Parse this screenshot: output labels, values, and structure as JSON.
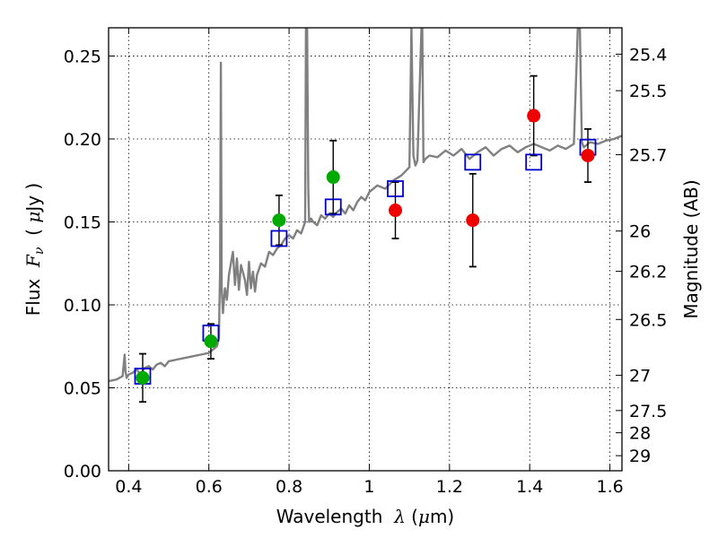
{
  "chart_data": {
    "type": "scatter",
    "xlabel": "Wavelength  λ (μm)",
    "ylabel": "Flux  F_ν  ( μJy )",
    "y2label": "Magnitude (AB)",
    "xlim": [
      0.35,
      1.63
    ],
    "ylim": [
      0.0,
      0.267
    ],
    "grid": true,
    "x_ticks": [
      0.4,
      0.6,
      0.8,
      1.0,
      1.2,
      1.4,
      1.6
    ],
    "x_tick_labels": [
      "0.4",
      "0.6",
      "0.8",
      "1",
      "1.2",
      "1.4",
      "1.6"
    ],
    "y_ticks": [
      0.0,
      0.05,
      0.1,
      0.15,
      0.2,
      0.25
    ],
    "y_tick_labels": [
      "0.00",
      "0.05",
      "0.10",
      "0.15",
      "0.20",
      "0.25"
    ],
    "y2_tick_labels": [
      "25.4",
      "25.5",
      "25.7",
      "26",
      "26.2",
      "26.5",
      "27",
      "27.5",
      "28",
      "29"
    ],
    "y2_ticks_flux": [
      0.2511,
      0.2291,
      0.1905,
      0.1445,
      0.1202,
      0.0912,
      0.0575,
      0.0363,
      0.0229,
      0.0091
    ],
    "model_spectrum": {
      "color": "#808080",
      "x": [
        0.35,
        0.37,
        0.385,
        0.39,
        0.392,
        0.395,
        0.4,
        0.41,
        0.42,
        0.43,
        0.44,
        0.45,
        0.46,
        0.47,
        0.48,
        0.49,
        0.5,
        0.52,
        0.54,
        0.56,
        0.58,
        0.6,
        0.61,
        0.62,
        0.625,
        0.628,
        0.63,
        0.632,
        0.635,
        0.64,
        0.645,
        0.65,
        0.66,
        0.665,
        0.67,
        0.675,
        0.68,
        0.69,
        0.695,
        0.7,
        0.705,
        0.71,
        0.715,
        0.72,
        0.73,
        0.74,
        0.75,
        0.76,
        0.77,
        0.78,
        0.79,
        0.8,
        0.81,
        0.82,
        0.83,
        0.84,
        0.842,
        0.845,
        0.848,
        0.85,
        0.855,
        0.86,
        0.87,
        0.88,
        0.89,
        0.9,
        0.91,
        0.92,
        0.93,
        0.94,
        0.95,
        0.96,
        0.97,
        0.98,
        0.99,
        1.0,
        1.02,
        1.04,
        1.06,
        1.08,
        1.1,
        1.105,
        1.11,
        1.115,
        1.12,
        1.13,
        1.132,
        1.135,
        1.14,
        1.15,
        1.17,
        1.19,
        1.21,
        1.23,
        1.25,
        1.27,
        1.29,
        1.31,
        1.33,
        1.35,
        1.37,
        1.39,
        1.41,
        1.43,
        1.45,
        1.47,
        1.49,
        1.51,
        1.52,
        1.525,
        1.53,
        1.535,
        1.54,
        1.55,
        1.57,
        1.59,
        1.61,
        1.63
      ],
      "y": [
        0.054,
        0.055,
        0.057,
        0.07,
        0.06,
        0.056,
        0.058,
        0.059,
        0.061,
        0.058,
        0.062,
        0.063,
        0.061,
        0.064,
        0.065,
        0.063,
        0.066,
        0.067,
        0.068,
        0.069,
        0.07,
        0.071,
        0.073,
        0.075,
        0.08,
        0.12,
        0.246,
        0.11,
        0.095,
        0.11,
        0.103,
        0.118,
        0.132,
        0.112,
        0.128,
        0.109,
        0.124,
        0.115,
        0.106,
        0.126,
        0.11,
        0.12,
        0.108,
        0.118,
        0.125,
        0.123,
        0.132,
        0.13,
        0.134,
        0.136,
        0.14,
        0.142,
        0.14,
        0.145,
        0.143,
        0.15,
        0.267,
        0.267,
        0.17,
        0.15,
        0.152,
        0.15,
        0.148,
        0.154,
        0.152,
        0.155,
        0.153,
        0.156,
        0.158,
        0.155,
        0.16,
        0.157,
        0.162,
        0.165,
        0.163,
        0.168,
        0.172,
        0.17,
        0.175,
        0.178,
        0.183,
        0.267,
        0.19,
        0.184,
        0.187,
        0.267,
        0.267,
        0.186,
        0.188,
        0.19,
        0.189,
        0.193,
        0.19,
        0.194,
        0.188,
        0.192,
        0.195,
        0.19,
        0.194,
        0.196,
        0.192,
        0.195,
        0.197,
        0.195,
        0.193,
        0.196,
        0.194,
        0.197,
        0.267,
        0.267,
        0.198,
        0.195,
        0.196,
        0.198,
        0.197,
        0.199,
        0.2,
        0.202
      ]
    },
    "model_photometry": {
      "color": "#0000cc",
      "marker": "open-square",
      "x": [
        0.435,
        0.605,
        0.775,
        0.91,
        1.065,
        1.258,
        1.41,
        1.545
      ],
      "y": [
        0.057,
        0.083,
        0.14,
        0.159,
        0.17,
        0.186,
        0.186,
        0.195
      ]
    },
    "detections": {
      "color": "#00aa00",
      "marker": "filled-circle",
      "x": [
        0.435,
        0.605,
        0.775,
        0.91
      ],
      "y": [
        0.056,
        0.078,
        0.151,
        0.177
      ],
      "err": [
        0.0145,
        0.0105,
        0.015,
        0.022
      ]
    },
    "upper_points": {
      "color": "#ee0000",
      "marker": "filled-circle",
      "x": [
        1.065,
        1.258,
        1.41,
        1.545
      ],
      "y": [
        0.157,
        0.151,
        0.214,
        0.19
      ],
      "err": [
        0.017,
        0.028,
        0.024,
        0.016
      ]
    }
  }
}
